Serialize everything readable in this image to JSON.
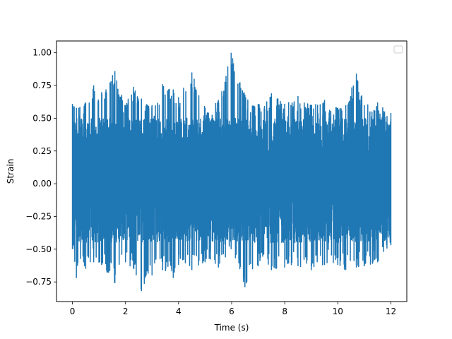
{
  "chart_data": {
    "type": "line",
    "title": "",
    "xlabel": "Time (s)",
    "ylabel": "Strain",
    "xlim": [
      -0.6,
      12.6
    ],
    "ylim": [
      -0.9,
      1.09
    ],
    "x_ticks": [
      0,
      2,
      4,
      6,
      8,
      10,
      12
    ],
    "y_ticks": [
      -0.75,
      -0.5,
      -0.25,
      0.0,
      0.25,
      0.5,
      0.75,
      1.0
    ],
    "x_tick_labels": [
      "0",
      "2",
      "4",
      "6",
      "8",
      "10",
      "12"
    ],
    "y_tick_labels": [
      "−0.75",
      "−0.50",
      "−0.25",
      "0.00",
      "0.25",
      "0.50",
      "0.75",
      "1.00"
    ],
    "grid": false,
    "legend": {
      "placement": "top-right",
      "entries": []
    },
    "series": [
      {
        "color": "#1f77b4",
        "x_range": [
          0,
          12
        ],
        "typical_band": [
          -0.45,
          0.5
        ],
        "envelope": [
          {
            "x": 0.0,
            "min": -0.5,
            "max": 0.61
          },
          {
            "x": 0.15,
            "min": -0.72,
            "max": 0.58
          },
          {
            "x": 0.5,
            "min": -0.65,
            "max": 0.62
          },
          {
            "x": 0.8,
            "min": -0.6,
            "max": 0.75
          },
          {
            "x": 1.1,
            "min": -0.62,
            "max": 0.7
          },
          {
            "x": 1.6,
            "min": -0.76,
            "max": 0.86
          },
          {
            "x": 2.0,
            "min": -0.6,
            "max": 0.6
          },
          {
            "x": 2.3,
            "min": -0.65,
            "max": 0.74
          },
          {
            "x": 2.6,
            "min": -0.82,
            "max": 0.65
          },
          {
            "x": 3.0,
            "min": -0.7,
            "max": 0.6
          },
          {
            "x": 3.4,
            "min": -0.66,
            "max": 0.76
          },
          {
            "x": 3.8,
            "min": -0.72,
            "max": 0.72
          },
          {
            "x": 4.0,
            "min": -0.62,
            "max": 0.66
          },
          {
            "x": 4.5,
            "min": -0.66,
            "max": 0.85
          },
          {
            "x": 5.0,
            "min": -0.6,
            "max": 0.58
          },
          {
            "x": 5.5,
            "min": -0.64,
            "max": 0.64
          },
          {
            "x": 5.98,
            "min": -0.5,
            "max": 1.0
          },
          {
            "x": 6.5,
            "min": -0.79,
            "max": 0.68
          },
          {
            "x": 7.0,
            "min": -0.63,
            "max": 0.61
          },
          {
            "x": 7.5,
            "min": -0.66,
            "max": 0.69
          },
          {
            "x": 8.0,
            "min": -0.64,
            "max": 0.61
          },
          {
            "x": 8.5,
            "min": -0.63,
            "max": 0.67
          },
          {
            "x": 9.0,
            "min": -0.66,
            "max": 0.6
          },
          {
            "x": 9.5,
            "min": -0.62,
            "max": 0.64
          },
          {
            "x": 10.0,
            "min": -0.62,
            "max": 0.58
          },
          {
            "x": 10.3,
            "min": -0.66,
            "max": 0.6
          },
          {
            "x": 10.7,
            "min": -0.64,
            "max": 0.84
          },
          {
            "x": 11.0,
            "min": -0.63,
            "max": 0.6
          },
          {
            "x": 11.5,
            "min": -0.6,
            "max": 0.62
          },
          {
            "x": 12.0,
            "min": -0.47,
            "max": 0.54
          }
        ]
      }
    ]
  }
}
